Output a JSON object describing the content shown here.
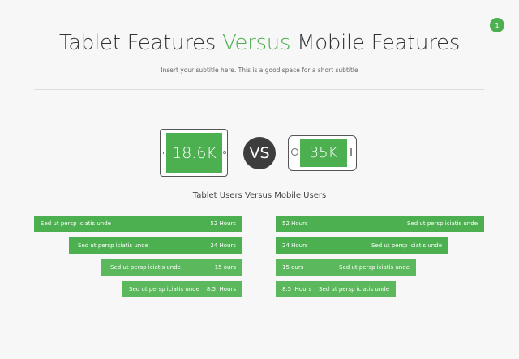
{
  "page_number": "1",
  "title": {
    "part1": "Tablet Features ",
    "accent": "Versus",
    "part2": " Mobile Features"
  },
  "subtitle": "Insert your subtitle here. This is a good space for a short subtitle",
  "tablet": {
    "value": "18.6K"
  },
  "vs": "VS",
  "mobile": {
    "value": "35K"
  },
  "caption": "Tablet Users Versus Mobile Users",
  "colors": {
    "accent": "#4caf50",
    "accent_light": "#5cb85c",
    "dark": "#3d3d3d"
  },
  "left_bars": [
    {
      "label": "Sed ut persp iciatis unde",
      "value": "52 Hours"
    },
    {
      "label": "Sed ut persp iciatis unde",
      "value": "24 Hours"
    },
    {
      "label": "Sed ut persp iciatis unde",
      "value": "15 ours"
    },
    {
      "label": "Sed ut persp iciatis unde",
      "value": "8.5  Hours"
    }
  ],
  "right_bars": [
    {
      "label": "Sed ut persp iciatis unde",
      "value": "52 Hours"
    },
    {
      "label": "Sed ut persp iciatis unde",
      "value": "24 Hours"
    },
    {
      "label": "Sed ut persp iciatis unde",
      "value": "15 ours"
    },
    {
      "label": "Sed ut persp iciatis unde",
      "value": "8.5  Hours"
    }
  ]
}
